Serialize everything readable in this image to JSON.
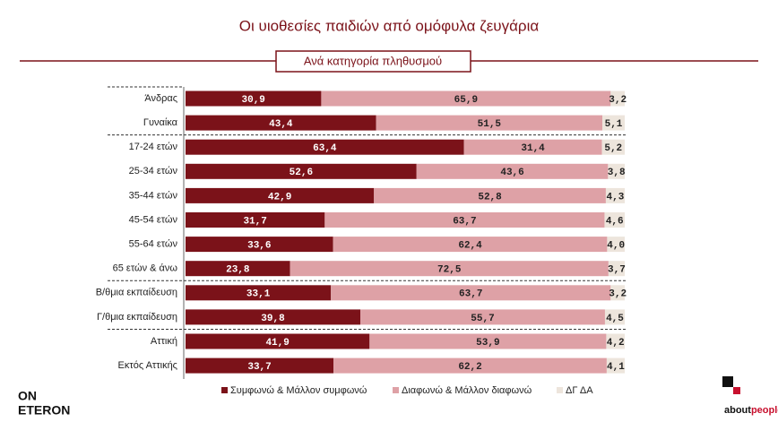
{
  "chart_data": {
    "type": "stacked-bar-horizontal",
    "title": "Οι υιοθεσίες παιδιών από ομόφυλα ζευγάρια",
    "subtitle": "Ανά κατηγορία πληθυσμού",
    "categories": [
      "Άνδρας",
      "Γυναίκα",
      "17-24 ετών",
      "25-34 ετών",
      "35-44 ετών",
      "45-54 ετών",
      "55-64 ετών",
      "65 ετών & άνω",
      "Β/θμια εκπαίδευση",
      "Γ/θμια εκπαίδευση",
      "Αττική",
      "Εκτός Αττικής"
    ],
    "series": [
      {
        "name": "Συμφωνώ & Μάλλον συμφωνώ",
        "color": "#7b1219",
        "values": [
          30.9,
          43.4,
          63.4,
          52.6,
          42.9,
          31.7,
          33.6,
          23.8,
          33.1,
          39.8,
          41.9,
          33.7
        ],
        "value_labels": [
          "30,9",
          "43,4",
          "63,4",
          "52,6",
          "42,9",
          "31,7",
          "33,6",
          "23,8",
          "33,1",
          "39,8",
          "41,9",
          "33,7"
        ]
      },
      {
        "name": "Διαφωνώ & Μάλλον διαφωνώ",
        "color": "#dea1a6",
        "values": [
          65.9,
          51.5,
          31.4,
          43.6,
          52.8,
          63.7,
          62.4,
          72.5,
          63.7,
          55.7,
          53.9,
          62.2
        ],
        "value_labels": [
          "65,9",
          "51,5",
          "31,4",
          "43,6",
          "52,8",
          "63,7",
          "62,4",
          "72,5",
          "63,7",
          "55,7",
          "53,9",
          "62,2"
        ]
      },
      {
        "name": "ΔΓ ΔΑ",
        "color": "#ede5dc",
        "values": [
          3.2,
          5.1,
          5.2,
          3.8,
          4.3,
          4.6,
          4.0,
          3.7,
          3.2,
          4.5,
          4.2,
          4.1
        ],
        "value_labels": [
          "3,2",
          "5,1",
          "5,2",
          "3,8",
          "4,3",
          "4,6",
          "4,0",
          "3,7",
          "3,2",
          "4,5",
          "4,2",
          "4,1"
        ]
      }
    ]
  },
  "branding": {
    "left": [
      "ON",
      "ETERON"
    ],
    "right": [
      "about",
      "people"
    ]
  }
}
